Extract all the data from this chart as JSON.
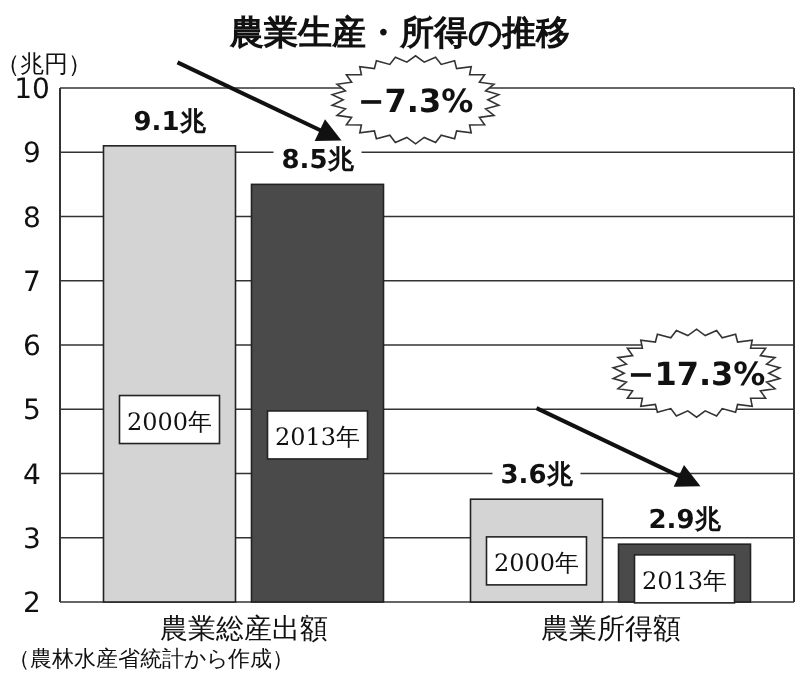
{
  "chart_data": {
    "type": "bar",
    "title": "農業生産・所得の推移",
    "ylabel": "（兆円）",
    "categories": [
      "農業総産出額",
      "農業所得額"
    ],
    "series": [
      {
        "name": "2000年",
        "color": "#d4d4d4",
        "values": [
          9.1,
          3.6
        ],
        "value_labels": [
          "9.1兆",
          "3.6兆"
        ]
      },
      {
        "name": "2013年",
        "color": "#4a4a4a",
        "values": [
          8.5,
          2.9
        ],
        "value_labels": [
          "8.5兆",
          "2.9兆"
        ]
      }
    ],
    "ylim": [
      2,
      10
    ],
    "yticks": [
      2,
      3,
      4,
      5,
      6,
      7,
      8,
      9,
      10
    ],
    "grid": "y",
    "annotations": [
      "−7.3%",
      "−17.3%",
      "（農林水産省統計から作成）"
    ]
  }
}
